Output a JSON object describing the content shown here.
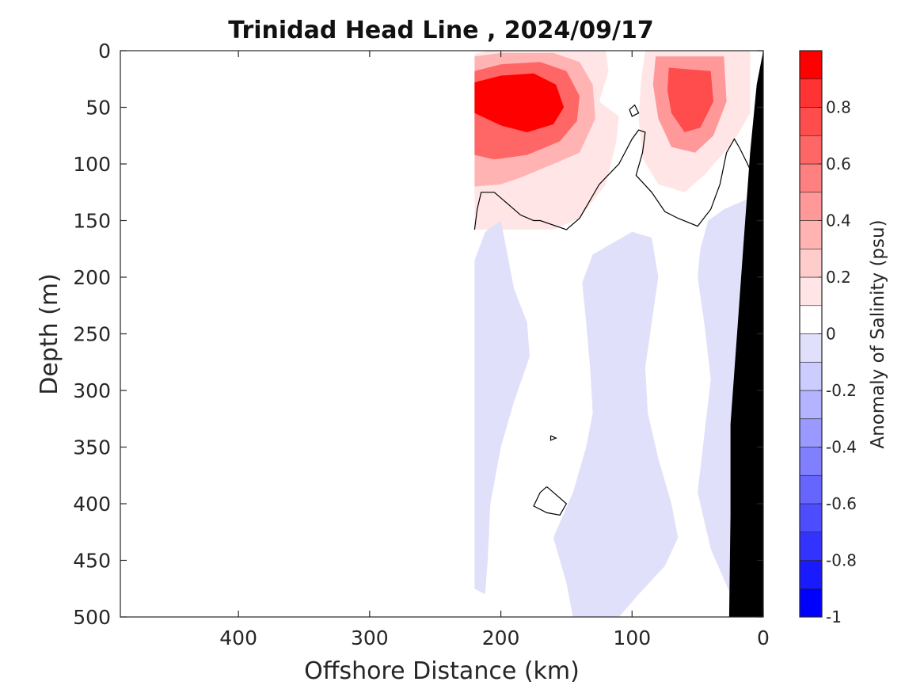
{
  "chart_data": {
    "type": "heatmap",
    "title": "Trinidad Head Line , 2024/09/17",
    "xlabel": "Offshore Distance (km)",
    "ylabel": "Depth (m)",
    "xlim": [
      490,
      0
    ],
    "ylim": [
      0,
      500
    ],
    "x_reversed": true,
    "y_reversed": true,
    "x_ticks": [
      {
        "value": 400,
        "label": "400"
      },
      {
        "value": 300,
        "label": "300"
      },
      {
        "value": 200,
        "label": "200"
      },
      {
        "value": 100,
        "label": "100"
      },
      {
        "value": 0,
        "label": "0"
      }
    ],
    "y_ticks": [
      {
        "value": 0,
        "label": "0"
      },
      {
        "value": 50,
        "label": "50"
      },
      {
        "value": 100,
        "label": "100"
      },
      {
        "value": 150,
        "label": "150"
      },
      {
        "value": 200,
        "label": "200"
      },
      {
        "value": 250,
        "label": "250"
      },
      {
        "value": 300,
        "label": "300"
      },
      {
        "value": 350,
        "label": "350"
      },
      {
        "value": 400,
        "label": "400"
      },
      {
        "value": 450,
        "label": "450"
      },
      {
        "value": 500,
        "label": "500"
      }
    ],
    "colorbar": {
      "label": "Anomaly of Salinity (psu)",
      "range": [
        -1,
        1
      ],
      "levels": [
        {
          "from": -1.0,
          "to": -0.9,
          "color": "#0000ff"
        },
        {
          "from": -0.9,
          "to": -0.8,
          "color": "#1a1aff"
        },
        {
          "from": -0.8,
          "to": -0.7,
          "color": "#3333ff"
        },
        {
          "from": -0.7,
          "to": -0.6,
          "color": "#4d4dff"
        },
        {
          "from": -0.6,
          "to": -0.5,
          "color": "#6666ff"
        },
        {
          "from": -0.5,
          "to": -0.4,
          "color": "#8080ff"
        },
        {
          "from": -0.4,
          "to": -0.3,
          "color": "#9999ff"
        },
        {
          "from": -0.3,
          "to": -0.2,
          "color": "#b3b3ff"
        },
        {
          "from": -0.2,
          "to": -0.1,
          "color": "#ccccff"
        },
        {
          "from": -0.1,
          "to": 0.0,
          "color": "#e0e0fa"
        },
        {
          "from": 0.0,
          "to": 0.1,
          "color": "#ffffff"
        },
        {
          "from": 0.1,
          "to": 0.2,
          "color": "#ffe5e5"
        },
        {
          "from": 0.2,
          "to": 0.3,
          "color": "#ffcccc"
        },
        {
          "from": 0.3,
          "to": 0.4,
          "color": "#ffb3b3"
        },
        {
          "from": 0.4,
          "to": 0.5,
          "color": "#ff9999"
        },
        {
          "from": 0.5,
          "to": 0.6,
          "color": "#ff8080"
        },
        {
          "from": 0.6,
          "to": 0.7,
          "color": "#ff6666"
        },
        {
          "from": 0.7,
          "to": 0.8,
          "color": "#ff4d4d"
        },
        {
          "from": 0.8,
          "to": 0.9,
          "color": "#ff3333"
        },
        {
          "from": 0.9,
          "to": 1.0,
          "color": "#ff0000"
        }
      ],
      "ticks": [
        {
          "value": 0.8,
          "label": "0.8"
        },
        {
          "value": 0.6,
          "label": "0.6"
        },
        {
          "value": 0.4,
          "label": "0.4"
        },
        {
          "value": 0.2,
          "label": "0.2"
        },
        {
          "value": 0.0,
          "label": "0"
        },
        {
          "value": -0.2,
          "label": "-0.2"
        },
        {
          "value": -0.4,
          "label": "-0.4"
        },
        {
          "value": -0.6,
          "label": "-0.6"
        },
        {
          "value": -0.8,
          "label": "-0.8"
        },
        {
          "value": -1.0,
          "label": "-1"
        }
      ]
    },
    "regions": [
      {
        "name": "positive-anomaly-nearshore-upper",
        "level": 0.1,
        "points": [
          [
            220,
            3
          ],
          [
            210,
            0
          ],
          [
            120,
            0
          ],
          [
            118,
            18
          ],
          [
            125,
            45
          ],
          [
            110,
            58
          ],
          [
            112,
            80
          ],
          [
            120,
            118
          ],
          [
            140,
            148
          ],
          [
            160,
            158
          ],
          [
            220,
            158
          ]
        ]
      },
      {
        "name": "positive-anomaly-core-left",
        "level": 0.3,
        "points": [
          [
            220,
            5
          ],
          [
            200,
            2
          ],
          [
            160,
            2
          ],
          [
            140,
            10
          ],
          [
            130,
            30
          ],
          [
            128,
            60
          ],
          [
            140,
            90
          ],
          [
            160,
            100
          ],
          [
            185,
            112
          ],
          [
            200,
            118
          ],
          [
            220,
            120
          ]
        ]
      },
      {
        "name": "positive-anomaly-core-left-inner",
        "level": 0.6,
        "points": [
          [
            220,
            18
          ],
          [
            200,
            12
          ],
          [
            170,
            10
          ],
          [
            150,
            18
          ],
          [
            140,
            40
          ],
          [
            142,
            62
          ],
          [
            155,
            80
          ],
          [
            180,
            92
          ],
          [
            205,
            96
          ],
          [
            220,
            92
          ]
        ]
      },
      {
        "name": "positive-anomaly-core-left-max",
        "level": 0.9,
        "points": [
          [
            220,
            28
          ],
          [
            200,
            22
          ],
          [
            175,
            20
          ],
          [
            158,
            30
          ],
          [
            152,
            50
          ],
          [
            160,
            65
          ],
          [
            180,
            72
          ],
          [
            200,
            66
          ],
          [
            220,
            55
          ]
        ]
      },
      {
        "name": "positive-anomaly-right",
        "level": 0.1,
        "points": [
          [
            90,
            0
          ],
          [
            10,
            0
          ],
          [
            10,
            55
          ],
          [
            20,
            75
          ],
          [
            30,
            90
          ],
          [
            45,
            110
          ],
          [
            60,
            125
          ],
          [
            80,
            118
          ],
          [
            92,
            95
          ],
          [
            95,
            60
          ],
          [
            93,
            25
          ]
        ]
      },
      {
        "name": "positive-anomaly-right-core",
        "level": 0.4,
        "points": [
          [
            82,
            5
          ],
          [
            30,
            5
          ],
          [
            28,
            45
          ],
          [
            38,
            75
          ],
          [
            52,
            90
          ],
          [
            70,
            85
          ],
          [
            80,
            60
          ],
          [
            84,
            30
          ]
        ]
      },
      {
        "name": "positive-anomaly-right-max",
        "level": 0.7,
        "points": [
          [
            72,
            15
          ],
          [
            40,
            18
          ],
          [
            38,
            45
          ],
          [
            48,
            68
          ],
          [
            60,
            72
          ],
          [
            70,
            55
          ],
          [
            73,
            35
          ]
        ]
      },
      {
        "name": "negative-anomaly-west",
        "level": -0.1,
        "points": [
          [
            220,
            185
          ],
          [
            212,
            160
          ],
          [
            200,
            150
          ],
          [
            195,
            180
          ],
          [
            190,
            210
          ],
          [
            180,
            240
          ],
          [
            178,
            270
          ],
          [
            190,
            310
          ],
          [
            200,
            350
          ],
          [
            208,
            400
          ],
          [
            210,
            450
          ],
          [
            212,
            480
          ],
          [
            220,
            475
          ]
        ]
      },
      {
        "name": "negative-anomaly-middle",
        "level": -0.1,
        "points": [
          [
            138,
            205
          ],
          [
            130,
            180
          ],
          [
            115,
            170
          ],
          [
            100,
            160
          ],
          [
            85,
            165
          ],
          [
            80,
            200
          ],
          [
            85,
            240
          ],
          [
            90,
            280
          ],
          [
            88,
            320
          ],
          [
            80,
            360
          ],
          [
            70,
            400
          ],
          [
            65,
            430
          ],
          [
            75,
            455
          ],
          [
            95,
            480
          ],
          [
            110,
            500
          ],
          [
            145,
            500
          ],
          [
            150,
            470
          ],
          [
            160,
            430
          ],
          [
            145,
            390
          ],
          [
            135,
            350
          ],
          [
            130,
            320
          ],
          [
            132,
            280
          ],
          [
            135,
            240
          ]
        ]
      },
      {
        "name": "negative-anomaly-east",
        "level": -0.1,
        "points": [
          [
            48,
            175
          ],
          [
            42,
            150
          ],
          [
            30,
            140
          ],
          [
            10,
            130
          ],
          [
            0,
            130
          ],
          [
            0,
            500
          ],
          [
            25,
            500
          ],
          [
            25,
            480
          ],
          [
            40,
            440
          ],
          [
            50,
            390
          ],
          [
            45,
            340
          ],
          [
            40,
            290
          ],
          [
            45,
            240
          ],
          [
            50,
            200
          ]
        ]
      }
    ],
    "contours_zero": [
      {
        "name": "zero-contour-upper",
        "points": [
          [
            220,
            158
          ],
          [
            218,
            140
          ],
          [
            215,
            125
          ],
          [
            205,
            125
          ],
          [
            195,
            135
          ],
          [
            185,
            145
          ],
          [
            175,
            150
          ],
          [
            170,
            150
          ],
          [
            150,
            158
          ],
          [
            140,
            148
          ],
          [
            130,
            128
          ],
          [
            125,
            118
          ],
          [
            110,
            100
          ],
          [
            100,
            78
          ],
          [
            95,
            70
          ],
          [
            90,
            72
          ],
          [
            92,
            90
          ],
          [
            97,
            110
          ],
          [
            85,
            125
          ],
          [
            75,
            142
          ],
          [
            65,
            148
          ],
          [
            50,
            155
          ],
          [
            40,
            140
          ],
          [
            33,
            118
          ],
          [
            28,
            90
          ],
          [
            22,
            78
          ],
          [
            18,
            86
          ],
          [
            12,
            100
          ],
          [
            8,
            110
          ],
          [
            5,
            95
          ]
        ]
      },
      {
        "name": "zero-contour-small-loop-1",
        "points": [
          [
            102,
            52
          ],
          [
            98,
            48
          ],
          [
            95,
            55
          ],
          [
            100,
            58
          ],
          [
            102,
            52
          ]
        ]
      },
      {
        "name": "zero-contour-loop-2",
        "points": [
          [
            165,
            385
          ],
          [
            158,
            392
          ],
          [
            150,
            400
          ],
          [
            155,
            410
          ],
          [
            165,
            408
          ],
          [
            175,
            402
          ],
          [
            170,
            390
          ],
          [
            165,
            385
          ]
        ]
      },
      {
        "name": "zero-contour-small-loop-3",
        "points": [
          [
            162,
            340
          ],
          [
            158,
            342
          ],
          [
            162,
            344
          ],
          [
            162,
            340
          ]
        ]
      }
    ],
    "bathymetry": {
      "color": "#000000",
      "points": [
        [
          0,
          0
        ],
        [
          5,
          30
        ],
        [
          10,
          90
        ],
        [
          15,
          170
        ],
        [
          20,
          250
        ],
        [
          25,
          330
        ],
        [
          25,
          410
        ],
        [
          26,
          500
        ],
        [
          0,
          500
        ]
      ]
    }
  }
}
